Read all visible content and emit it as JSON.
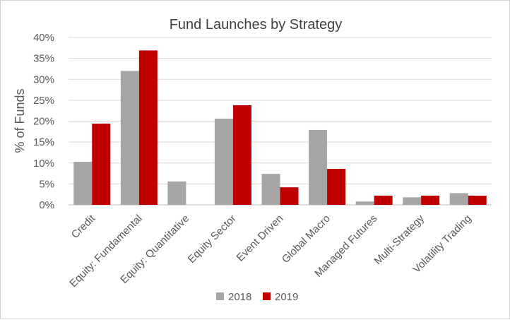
{
  "chart_data": {
    "type": "bar",
    "title": "Fund Launches by Strategy",
    "xlabel": "",
    "ylabel": "% of Funds",
    "ylim": [
      0,
      40
    ],
    "yticks": [
      "0%",
      "5%",
      "10%",
      "15%",
      "20%",
      "25%",
      "30%",
      "35%",
      "40%"
    ],
    "categories": [
      "Credit",
      "Equity: Fundamental",
      "Equity: Quantitative",
      "Equity Sector",
      "Event Driven",
      "Global Macro",
      "Managed Futures",
      "Multi-Strategy",
      "Volatility Trading"
    ],
    "series": [
      {
        "name": "2018",
        "color": "#a6a6a6",
        "values": [
          10.3,
          32.0,
          5.6,
          20.6,
          7.4,
          17.9,
          0.8,
          1.8,
          2.8
        ]
      },
      {
        "name": "2019",
        "color": "#c00000",
        "values": [
          19.4,
          36.9,
          0,
          23.8,
          4.2,
          8.6,
          2.2,
          2.2,
          2.2
        ]
      }
    ],
    "grid": true,
    "legend_position": "bottom"
  }
}
